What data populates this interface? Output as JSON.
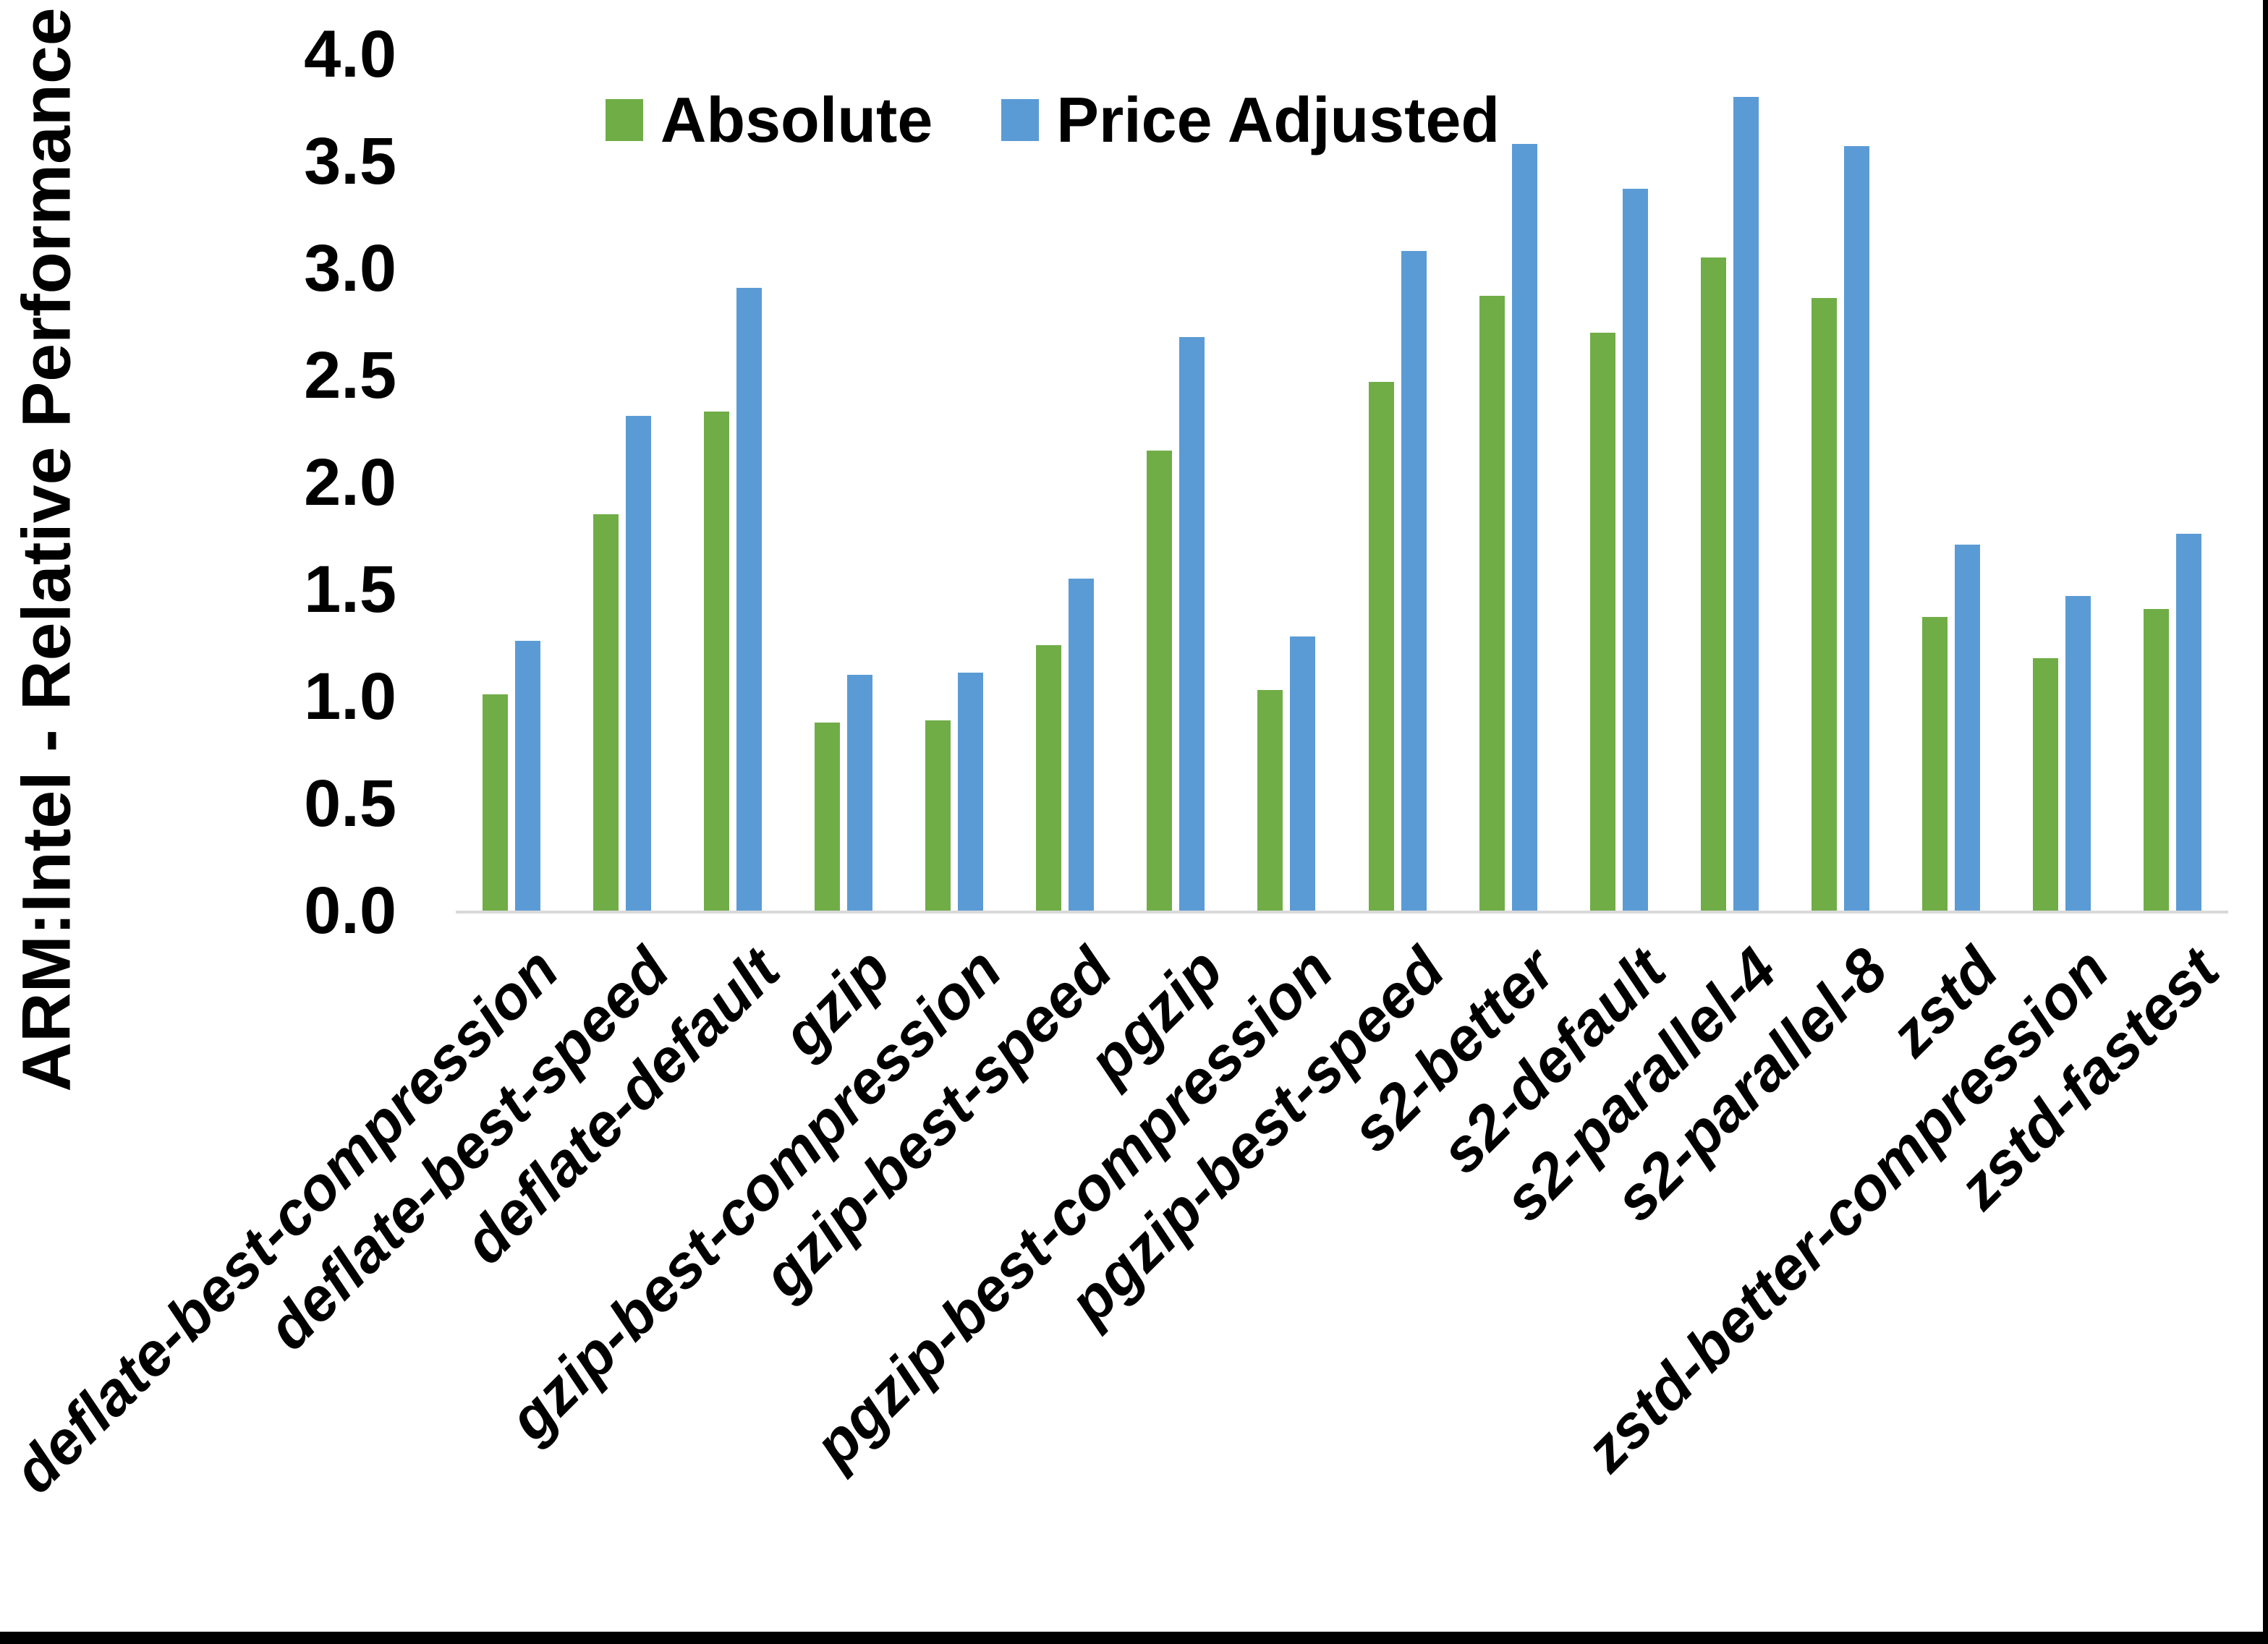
{
  "chart_data": {
    "type": "bar",
    "title": "",
    "xlabel": "",
    "ylabel": "ARM:Intel - Relative Performance",
    "ylim": [
      0,
      4
    ],
    "y_ticks": [
      "0.0",
      "0.5",
      "1.0",
      "1.5",
      "2.0",
      "2.5",
      "3.0",
      "3.5",
      "4.0"
    ],
    "grid": false,
    "legend_position": "top-center",
    "categories": [
      "deflate-best-compression",
      "deflate-best-speed",
      "deflate-default",
      "gzip",
      "gzip-best-compression",
      "gzip-best-speed",
      "pgzip",
      "pgzip-best-compression",
      "pgzip-best-speed",
      "s2-better",
      "s2-default",
      "s2-parallel-4",
      "s2-parallel-8",
      "zstd",
      "zstd-better-compression",
      "zstd-fastest"
    ],
    "series": [
      {
        "name": "Absolute",
        "color": "#70AD47",
        "values": [
          1.01,
          1.85,
          2.33,
          0.88,
          0.89,
          1.24,
          2.15,
          1.03,
          2.47,
          2.87,
          2.7,
          3.05,
          2.86,
          1.37,
          1.18,
          1.41
        ]
      },
      {
        "name": "Price Adjusted",
        "color": "#5B9BD5",
        "values": [
          1.26,
          2.31,
          2.91,
          1.1,
          1.11,
          1.55,
          2.68,
          1.28,
          3.08,
          3.58,
          3.37,
          3.8,
          3.57,
          1.71,
          1.47,
          1.76
        ]
      }
    ]
  },
  "colors": {
    "axis_line": "#D9D9D9",
    "text": "#000000",
    "screen_edge": "#000000"
  }
}
